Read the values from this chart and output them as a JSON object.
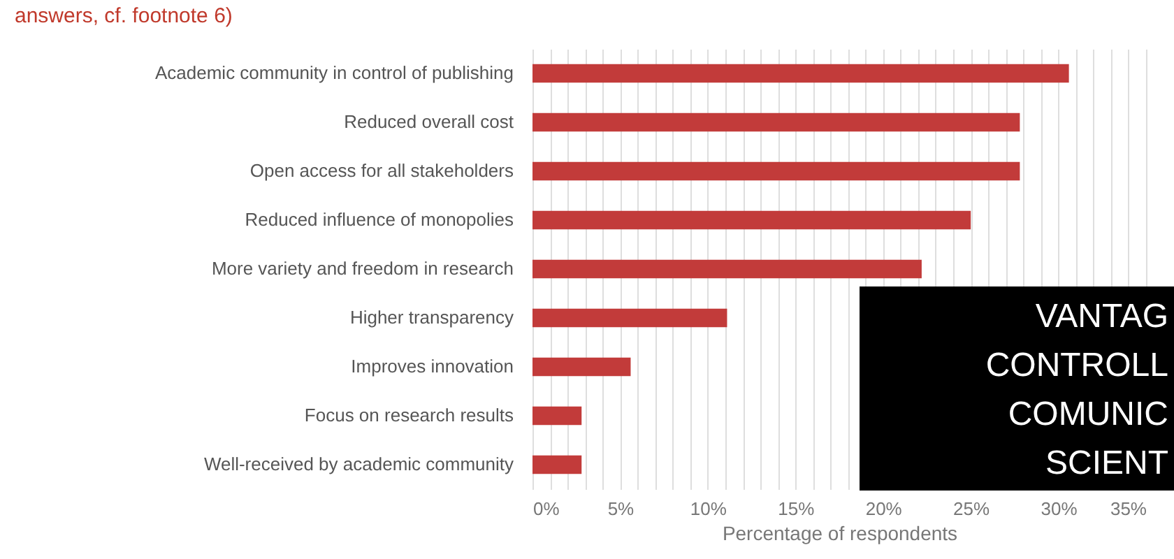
{
  "chart_data": {
    "type": "bar",
    "orientation": "horizontal",
    "title": "answers, cf. footnote 6)",
    "xlabel": "Percentage of respondents",
    "categories": [
      "Academic community in control of publishing",
      "Reduced overall cost",
      "Open access for all stakeholders",
      "Reduced influence of monopolies",
      "More variety and freedom in research",
      "Higher transparency",
      "Improves innovation",
      "Focus on research results",
      "Well-received by academic community"
    ],
    "values": [
      30.6,
      27.8,
      27.8,
      25,
      22.2,
      11.1,
      5.6,
      2.8,
      2.8
    ],
    "color": "#c23b3a",
    "xlim": [
      0,
      35
    ],
    "xticks": [
      {
        "value": 0,
        "label": "0%"
      },
      {
        "value": 1,
        "label": null
      },
      {
        "value": 2,
        "label": null
      },
      {
        "value": 3,
        "label": null
      },
      {
        "value": 4,
        "label": null
      },
      {
        "value": 5,
        "label": "5%"
      },
      {
        "value": 6,
        "label": null
      },
      {
        "value": 7,
        "label": null
      },
      {
        "value": 8,
        "label": null
      },
      {
        "value": 9,
        "label": null
      },
      {
        "value": 10,
        "label": "10%"
      },
      {
        "value": 11,
        "label": null
      },
      {
        "value": 12,
        "label": null
      },
      {
        "value": 13,
        "label": null
      },
      {
        "value": 14,
        "label": null
      },
      {
        "value": 15,
        "label": "15%"
      },
      {
        "value": 16,
        "label": null
      },
      {
        "value": 17,
        "label": null
      },
      {
        "value": 18,
        "label": null
      },
      {
        "value": 19,
        "label": null
      },
      {
        "value": 20,
        "label": "20%"
      },
      {
        "value": 21,
        "label": null
      },
      {
        "value": 22,
        "label": null
      },
      {
        "value": 23,
        "label": null
      },
      {
        "value": 24,
        "label": null
      },
      {
        "value": 25,
        "label": "25%"
      },
      {
        "value": 26,
        "label": null
      },
      {
        "value": 27,
        "label": null
      },
      {
        "value": 28,
        "label": null
      },
      {
        "value": 29,
        "label": null
      },
      {
        "value": 30,
        "label": "30%"
      },
      {
        "value": 31,
        "label": null
      },
      {
        "value": 32,
        "label": null
      },
      {
        "value": 33,
        "label": null
      },
      {
        "value": 34,
        "label": null
      },
      {
        "value": 35,
        "label": "35%"
      }
    ],
    "grid": "x",
    "annotations": [
      "VANTAG",
      "CONTROLL",
      "COMUNIC",
      "SCIENT"
    ]
  }
}
